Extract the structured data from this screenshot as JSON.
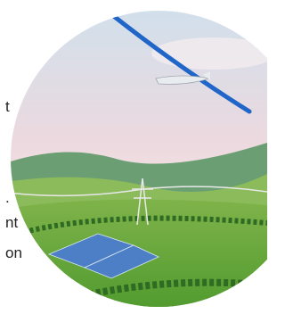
{
  "text_fragments": [
    "t",
    ".",
    "nt",
    "on"
  ]
}
